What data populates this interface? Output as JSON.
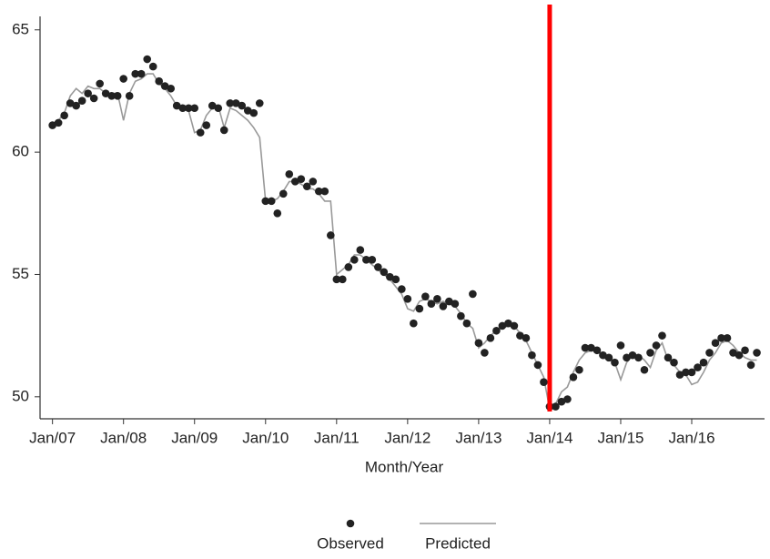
{
  "chart_data": {
    "type": "scatter",
    "x_label": "Month/Year",
    "x": [
      0,
      1,
      2,
      3,
      4,
      5,
      6,
      7,
      8,
      9,
      10,
      11,
      12,
      13,
      14,
      15,
      16,
      17,
      18,
      19,
      20,
      21,
      22,
      23,
      24,
      25,
      26,
      27,
      28,
      29,
      30,
      31,
      32,
      33,
      34,
      35,
      36,
      37,
      38,
      39,
      40,
      41,
      42,
      43,
      44,
      45,
      46,
      47,
      48,
      49,
      50,
      51,
      52,
      53,
      54,
      55,
      56,
      57,
      58,
      59,
      60,
      61,
      62,
      63,
      64,
      65,
      66,
      67,
      68,
      69,
      70,
      71,
      72,
      73,
      74,
      75,
      76,
      77,
      78,
      79,
      80,
      81,
      82,
      83,
      84,
      85,
      86,
      87,
      88,
      89,
      90,
      91,
      92,
      93,
      94,
      95,
      96,
      97,
      98,
      99,
      100,
      101,
      102,
      103,
      104,
      105,
      106,
      107,
      108,
      109,
      110,
      111,
      112,
      113,
      114,
      115,
      116,
      117,
      118,
      119
    ],
    "series": [
      {
        "name": "Observed",
        "mode": "markers",
        "color": "#222222",
        "values": [
          61.1,
          61.2,
          61.5,
          62.0,
          61.9,
          62.1,
          62.4,
          62.2,
          62.8,
          62.4,
          62.3,
          62.3,
          63.0,
          62.3,
          63.2,
          63.2,
          63.8,
          63.5,
          62.9,
          62.7,
          62.6,
          61.9,
          61.8,
          61.8,
          61.8,
          60.8,
          61.1,
          61.9,
          61.8,
          60.9,
          62.0,
          62.0,
          61.9,
          61.7,
          61.6,
          62.0,
          58.0,
          58.0,
          57.5,
          58.3,
          59.1,
          58.8,
          58.9,
          58.6,
          58.8,
          58.4,
          58.4,
          56.6,
          54.8,
          54.8,
          55.3,
          55.6,
          56.0,
          55.6,
          55.6,
          55.3,
          55.1,
          54.9,
          54.8,
          54.4,
          54.0,
          53.0,
          53.6,
          54.1,
          53.8,
          54.0,
          53.7,
          53.9,
          53.8,
          53.3,
          53.0,
          54.2,
          52.2,
          51.8,
          52.4,
          52.7,
          52.9,
          53.0,
          52.9,
          52.5,
          52.4,
          51.7,
          51.3,
          50.6,
          49.6,
          49.6,
          49.8,
          49.9,
          50.8,
          51.1,
          52.0,
          52.0,
          51.9,
          51.7,
          51.6,
          51.4,
          52.1,
          51.6,
          51.7,
          51.6,
          51.1,
          51.8,
          52.1,
          52.5,
          51.6,
          51.4,
          50.9,
          51.0,
          51.0,
          51.2,
          51.4,
          51.8,
          52.2,
          52.4,
          52.4,
          51.8,
          51.7,
          51.9,
          51.3,
          51.8
        ]
      },
      {
        "name": "Predicted",
        "mode": "line",
        "color": "#999999",
        "values": [
          61.0,
          61.3,
          61.6,
          62.3,
          62.6,
          62.4,
          62.7,
          62.6,
          62.6,
          62.4,
          62.4,
          62.4,
          61.3,
          62.4,
          62.9,
          63.0,
          63.2,
          63.2,
          62.8,
          62.6,
          62.3,
          61.9,
          61.8,
          61.7,
          60.8,
          60.9,
          61.5,
          61.8,
          61.9,
          61.0,
          61.8,
          61.7,
          61.5,
          61.3,
          61.0,
          60.6,
          58.0,
          58.0,
          58.1,
          58.4,
          58.8,
          58.8,
          58.7,
          58.5,
          58.5,
          58.3,
          58.0,
          58.0,
          55.0,
          55.2,
          55.4,
          55.8,
          55.8,
          55.6,
          55.4,
          55.2,
          55.0,
          54.8,
          54.5,
          54.2,
          53.6,
          53.5,
          53.9,
          54.0,
          53.9,
          53.8,
          53.9,
          53.8,
          53.7,
          53.4,
          53.0,
          52.8,
          52.0,
          52.2,
          52.5,
          52.7,
          52.8,
          52.9,
          52.9,
          52.6,
          52.3,
          51.8,
          51.3,
          50.8,
          49.5,
          49.7,
          50.2,
          50.4,
          51.0,
          51.5,
          51.8,
          51.9,
          51.9,
          51.6,
          51.5,
          51.4,
          50.7,
          51.4,
          51.7,
          51.7,
          51.5,
          51.2,
          51.9,
          52.2,
          51.5,
          51.3,
          51.0,
          50.9,
          50.5,
          50.6,
          51.0,
          51.5,
          51.8,
          52.2,
          52.3,
          52.1,
          51.8,
          51.6,
          51.5,
          51.5
        ]
      }
    ],
    "xlim": [
      -2.1,
      120.3
    ],
    "xticks": [
      {
        "value": 0,
        "label": "Jan/07"
      },
      {
        "value": 12,
        "label": "Jan/08"
      },
      {
        "value": 24,
        "label": "Jan/09"
      },
      {
        "value": 36,
        "label": "Jan/10"
      },
      {
        "value": 48,
        "label": "Jan/11"
      },
      {
        "value": 60,
        "label": "Jan/12"
      },
      {
        "value": 72,
        "label": "Jan/13"
      },
      {
        "value": 84,
        "label": "Jan/14"
      },
      {
        "value": 96,
        "label": "Jan/15"
      },
      {
        "value": 108,
        "label": "Jan/16"
      }
    ],
    "ylim": [
      49.1,
      65.55
    ],
    "yticks": [
      50,
      55,
      60,
      65
    ],
    "vline": {
      "x": 84,
      "color": "#ff0000"
    },
    "legend": "bottom"
  }
}
